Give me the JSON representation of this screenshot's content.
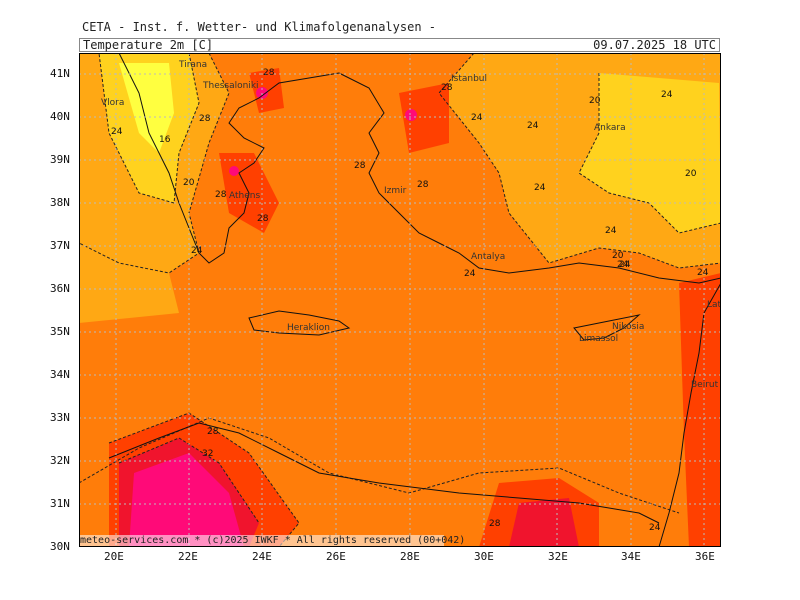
{
  "header": {
    "title": "CETA - Inst. f. Wetter- und Klimafolgenanalysen -",
    "variable": "Temperature 2m [C]",
    "valid_time": "09.07.2025 18 UTC"
  },
  "map": {
    "region": "Eastern Mediterranean",
    "lat_labels": [
      "41N",
      "40N",
      "39N",
      "38N",
      "37N",
      "36N",
      "35N",
      "34N",
      "33N",
      "32N",
      "31N",
      "30N"
    ],
    "lon_labels": [
      "20E",
      "22E",
      "24E",
      "26E",
      "28E",
      "30E",
      "32E",
      "34E",
      "36E"
    ],
    "cities": [
      "Tirana",
      "Vlora",
      "Thessaloniki",
      "Athens",
      "Istanbul",
      "Izmir",
      "Ankara",
      "Antalya",
      "Heraklion",
      "Nikosia",
      "Limassol",
      "Latakia",
      "Beirut"
    ],
    "contour_labels": [
      "28",
      "24",
      "16",
      "20",
      "28",
      "28",
      "24",
      "28",
      "24",
      "28",
      "28",
      "24",
      "28",
      "24",
      "20",
      "24",
      "20",
      "24",
      "24",
      "20",
      "24",
      "24",
      "24",
      "28",
      "32",
      "28",
      "24"
    ],
    "colors": {
      "c16": "#ffff40",
      "c20": "#ffd21e",
      "c24": "#ffa814",
      "c28": "#ff7d0a",
      "c32": "#ff4000",
      "c36": "#f0142d",
      "c40": "#ff0a78"
    },
    "credit": "meteo-services.com * (c)2025 IWKF * All rights reserved (00+042)"
  }
}
